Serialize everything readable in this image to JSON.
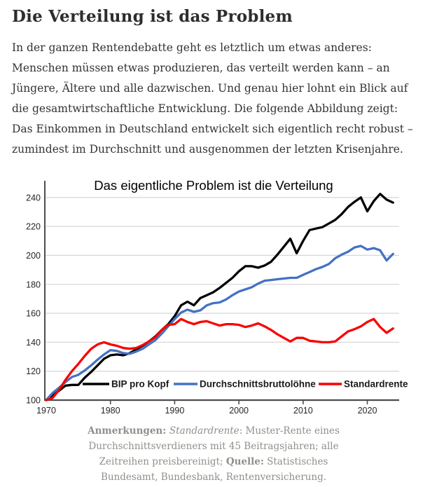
{
  "article": {
    "title": "Die Verteilung ist das Problem",
    "paragraph": "In der ganzen Rentendebatte geht es letztlich um etwas anderes: Menschen müssen etwas produzieren, das verteilt werden kann – an Jüngere, Ältere und alle dazwischen. Und genau hier lohnt ein Blick auf die gesamtwirtschaftliche Entwicklung. Die folgende Abbildung zeigt: Das Einkommen in Deutschland entwickelt sich eigentlich recht robust – zumindest im Durchschnitt und ausgenommen der letzten Krisenjahre."
  },
  "chart_data": {
    "type": "line",
    "title": "Das eigentliche Problem ist die Verteilung",
    "xlabel": "",
    "ylabel": "",
    "x_range": [
      1970,
      2024
    ],
    "ylim": [
      100,
      248
    ],
    "yticks": [
      100,
      120,
      140,
      160,
      180,
      200,
      220,
      240
    ],
    "xticks": [
      1970,
      1980,
      1990,
      2000,
      2010,
      2020
    ],
    "grid": "horizontal",
    "legend_position": "bottom-inside",
    "colors": {
      "grid": "#d9d9d9",
      "axis": "#4d4d4d",
      "tick_label": "#262626",
      "title": "#000000"
    },
    "x": [
      1970,
      1971,
      1972,
      1973,
      1974,
      1975,
      1976,
      1977,
      1978,
      1979,
      1980,
      1981,
      1982,
      1983,
      1984,
      1985,
      1986,
      1987,
      1988,
      1989,
      1990,
      1991,
      1992,
      1993,
      1994,
      1995,
      1996,
      1997,
      1998,
      1999,
      2000,
      2001,
      2002,
      2003,
      2004,
      2005,
      2006,
      2007,
      2008,
      2009,
      2010,
      2011,
      2012,
      2013,
      2014,
      2015,
      2016,
      2017,
      2018,
      2019,
      2020,
      2021,
      2022,
      2023,
      2024
    ],
    "series": [
      {
        "name": "BIP pro Kopf",
        "color": "#000000",
        "values": [
          100,
          103.5,
          106.5,
          110,
          110.5,
          110.5,
          115.5,
          119.5,
          124,
          128.5,
          131,
          131.5,
          131,
          132.5,
          135,
          137.5,
          140.5,
          144,
          148.5,
          152.5,
          158,
          165.5,
          168,
          165.5,
          170.5,
          172.5,
          174.5,
          177.5,
          181,
          184.5,
          189,
          192.5,
          192.5,
          191.5,
          193,
          195.5,
          200.5,
          206,
          211.5,
          201.5,
          210,
          217.5,
          218.5,
          219.5,
          222,
          224.5,
          228.5,
          233.5,
          237,
          240,
          230.5,
          237.5,
          242.5,
          238.5,
          236.5
        ]
      },
      {
        "name": "Durchschnittsbruttolöhne",
        "color": "#4472c4",
        "values": [
          100,
          105,
          108.5,
          112.5,
          116,
          117.5,
          120.5,
          124,
          128,
          131.5,
          134.5,
          134,
          132.5,
          132,
          133.5,
          135.5,
          138.5,
          141.5,
          146,
          151,
          156,
          160.5,
          162.5,
          161,
          162,
          165.5,
          167,
          167.5,
          169.5,
          172.5,
          175,
          176.5,
          178,
          180.5,
          182.5,
          183,
          183.5,
          184,
          184.5,
          184.5,
          186.5,
          188.5,
          190.5,
          192,
          194,
          198,
          200.5,
          202.5,
          205.5,
          206.5,
          204,
          205,
          203.5,
          196.5,
          201
        ]
      },
      {
        "name": "Standardrente",
        "color": "#fa0000",
        "values": [
          100,
          101.5,
          107,
          114,
          120,
          125,
          130.5,
          135.5,
          138.5,
          140,
          138.5,
          137.5,
          136,
          135.5,
          136,
          138,
          140.5,
          143.5,
          148.5,
          152,
          152.5,
          156,
          154,
          152.5,
          154,
          154.5,
          153,
          151.5,
          152.5,
          152.5,
          152,
          150.5,
          151.5,
          153,
          151,
          148.5,
          145.5,
          143,
          140.5,
          143,
          143,
          141,
          140.5,
          140,
          140,
          140.5,
          144,
          147.5,
          149,
          151,
          154,
          156,
          150.5,
          146.5,
          149.5
        ]
      }
    ]
  },
  "caption": {
    "notes_label": "Anmerkungen: ",
    "term": "Standardrente",
    "notes_text": ": Muster-Rente eines Durchschnittsverdieners mit 45 Beitragsjahren; alle Zeitreihen preisbereinigt; ",
    "source_label": "Quelle:",
    "source_text": " Statistisches Bundesamt, Bundesbank, Rentenversicherung."
  }
}
